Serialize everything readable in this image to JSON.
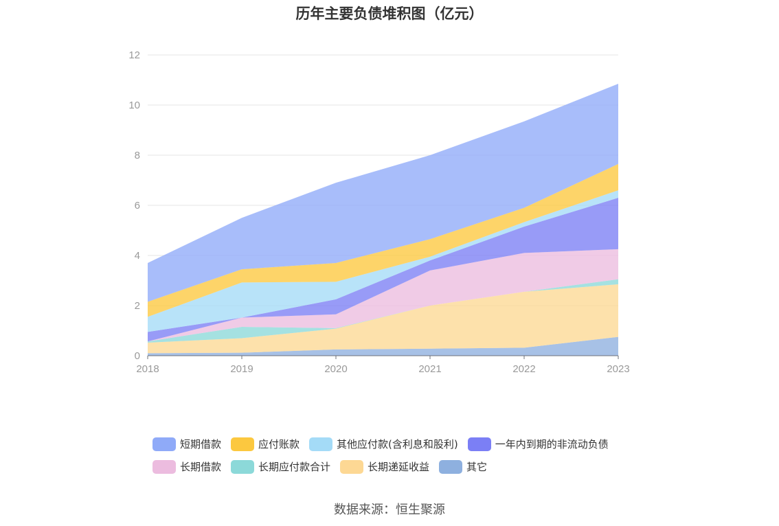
{
  "chart_data": {
    "type": "area",
    "stacked": true,
    "title": "历年主要负债堆积图（亿元）",
    "x": [
      "2018",
      "2019",
      "2020",
      "2021",
      "2022",
      "2023"
    ],
    "yticks": [
      "0",
      "2",
      "4",
      "6",
      "8",
      "10",
      "12"
    ],
    "ylim": [
      0,
      12
    ],
    "grid": true,
    "legend_position": "bottom",
    "series": [
      {
        "name": "其它",
        "color": "#8eb0df",
        "values": [
          0.1,
          0.12,
          0.25,
          0.28,
          0.32,
          0.75
        ]
      },
      {
        "name": "长期递延收益",
        "color": "#fdd894",
        "values": [
          0.42,
          0.58,
          0.83,
          1.72,
          2.23,
          2.1
        ]
      },
      {
        "name": "长期应付款合计",
        "color": "#8cd9d9",
        "values": [
          0.05,
          0.45,
          0.02,
          0.0,
          0.0,
          0.2
        ]
      },
      {
        "name": "长期借款",
        "color": "#ecbcdf",
        "values": [
          0.0,
          0.37,
          0.55,
          1.4,
          1.55,
          1.2
        ]
      },
      {
        "name": "一年内到期的非流动负债",
        "color": "#7b7ff5",
        "values": [
          0.38,
          0.0,
          0.6,
          0.4,
          1.05,
          2.05
        ]
      },
      {
        "name": "其他应付款(含利息和股利)",
        "color": "#a4dbf7",
        "values": [
          0.6,
          1.4,
          0.7,
          0.15,
          0.18,
          0.3
        ]
      },
      {
        "name": "应付账款",
        "color": "#fcc83f",
        "values": [
          0.6,
          0.53,
          0.75,
          0.7,
          0.57,
          1.05
        ]
      },
      {
        "name": "短期借款",
        "color": "#8faaf8",
        "values": [
          1.55,
          2.05,
          3.2,
          3.35,
          3.45,
          3.2
        ]
      }
    ]
  },
  "legend": [
    [
      {
        "label": "短期借款",
        "color": "#8faaf8"
      },
      {
        "label": "应付账款",
        "color": "#fcc83f"
      },
      {
        "label": "其他应付款(含利息和股利)",
        "color": "#a4dbf7"
      },
      {
        "label": "一年内到期的非流动负债",
        "color": "#7b7ff5"
      }
    ],
    [
      {
        "label": "长期借款",
        "color": "#ecbcdf"
      },
      {
        "label": "长期应付款合计",
        "color": "#8cd9d9"
      },
      {
        "label": "长期递延收益",
        "color": "#fdd894"
      },
      {
        "label": "其它",
        "color": "#8eb0df"
      }
    ]
  ],
  "source": "数据来源：恒生聚源"
}
